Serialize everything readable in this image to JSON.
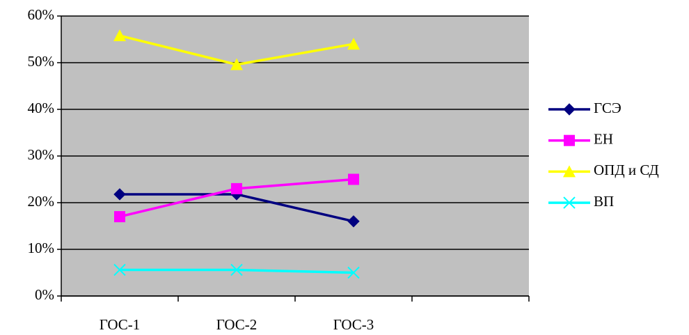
{
  "chart_data": {
    "type": "line",
    "categories": [
      "ГОС-1",
      "ГОС-2",
      "ГОС-3",
      null
    ],
    "series": [
      {
        "name": "ГСЭ",
        "color": "#000080",
        "marker": "diamond",
        "values": [
          21.8,
          21.8,
          16,
          null
        ]
      },
      {
        "name": "ЕН",
        "color": "#ff00ff",
        "marker": "square",
        "values": [
          17,
          23,
          25,
          null
        ]
      },
      {
        "name": "ОПД и СД",
        "color": "#ffff00",
        "marker": "triangle",
        "values": [
          55.8,
          49.6,
          54,
          null
        ]
      },
      {
        "name": "ВП",
        "color": "#00ffff",
        "marker": "x",
        "values": [
          5.6,
          5.6,
          5,
          null
        ]
      }
    ],
    "ylim": [
      0,
      60
    ],
    "yticks": [
      {
        "value": 0,
        "label": "0%"
      },
      {
        "value": 10,
        "label": "10%"
      },
      {
        "value": 20,
        "label": "20%"
      },
      {
        "value": 30,
        "label": "30%"
      },
      {
        "value": 40,
        "label": "40%"
      },
      {
        "value": 50,
        "label": "50%"
      },
      {
        "value": 60,
        "label": "60%"
      }
    ],
    "grid": true,
    "plot_background": "#c0c0c0",
    "legend": "right"
  }
}
